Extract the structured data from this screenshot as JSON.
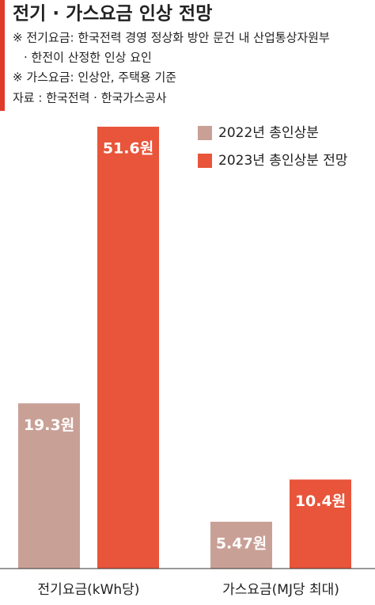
{
  "chart_data": {
    "type": "bar",
    "title": "전기 · 가스요금 인상 전망",
    "notes": [
      "※ 전기요금: 한국전력 경영 정상화 방안 문건 내 산업통상자원부",
      "· 한전이 산정한 인상 요인",
      "※ 가스요금: 인상안, 주택용 기준",
      "자료 : 한국전력 · 한국가스공사"
    ],
    "categories": [
      "전기요금(kWh당)",
      "가스요금(MJ당 최대)"
    ],
    "series": [
      {
        "name": "2022년 총인상분",
        "color": "#c9a096",
        "values": [
          19.3,
          5.47
        ],
        "value_labels": [
          "19.3원",
          "5.47원"
        ]
      },
      {
        "name": "2023년 총인상분 전망",
        "color": "#e8553a",
        "values": [
          51.6,
          10.4
        ],
        "value_labels": [
          "51.6원",
          "10.4원"
        ]
      }
    ]
  }
}
